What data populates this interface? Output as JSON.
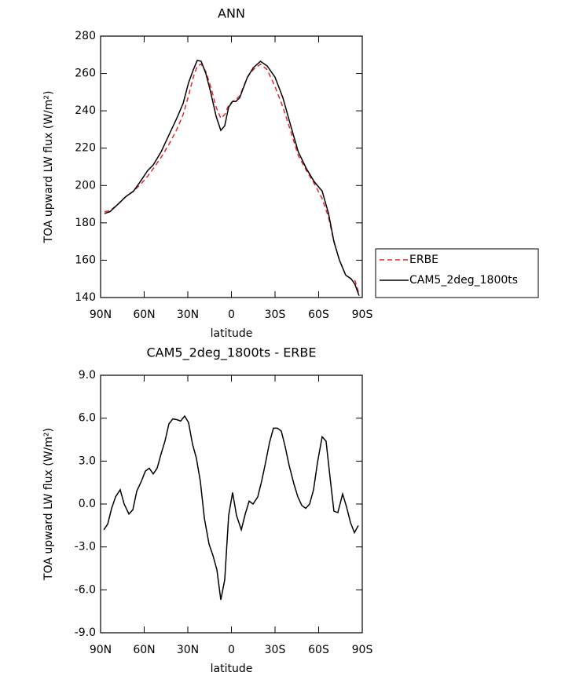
{
  "chart_data": [
    {
      "type": "line",
      "title": "ANN",
      "xlabel": "latitude",
      "ylabel": "TOA upward LW flux (W/m²)",
      "xlim": [
        90,
        -90
      ],
      "xticks": [
        {
          "value": 90,
          "label": "90N"
        },
        {
          "value": 60,
          "label": "60N"
        },
        {
          "value": 30,
          "label": "30N"
        },
        0,
        {
          "value": -30,
          "label": "30S"
        },
        {
          "value": -60,
          "label": "60S"
        },
        {
          "value": -90,
          "label": "90S"
        }
      ],
      "ylim": [
        140,
        280
      ],
      "yticks": [
        140,
        160,
        180,
        200,
        220,
        240,
        260,
        280
      ],
      "legend": "right",
      "series": [
        {
          "name": "ERBE",
          "color": "#e8262a",
          "style": "dashed",
          "x": [
            87.3,
            83.5,
            78,
            72.7,
            67.3,
            62,
            57.6,
            53.8,
            48.4,
            43,
            37.6,
            33.2,
            29.5,
            26.2,
            23.5,
            20.8,
            17.6,
            14.3,
            10.5,
            7.3,
            4.6,
            1.9,
            -0.8,
            -3,
            -5.7,
            -11,
            -15,
            -20,
            -24.6,
            -30,
            -35.4,
            -40.8,
            -46,
            -51.6,
            -57,
            -62.4,
            -66.8,
            -70.5,
            -74.3,
            -78.6,
            -82.4,
            -85,
            -87.8
          ],
          "values": [
            186,
            186.5,
            190,
            194,
            197,
            201,
            205,
            209,
            215,
            222,
            230,
            238,
            248,
            258,
            264,
            265,
            261,
            253,
            242,
            236,
            238,
            243,
            245,
            246,
            248,
            258,
            262,
            265,
            262,
            253,
            242,
            229,
            216,
            208,
            201,
            193,
            183,
            170,
            160,
            152,
            150,
            149,
            142
          ]
        },
        {
          "name": "CAM5_2deg_1800ts",
          "color": "#000000",
          "style": "solid",
          "x": [
            87.3,
            83.5,
            78,
            72.7,
            67.3,
            61.9,
            57.6,
            53.8,
            48.4,
            43,
            37.6,
            33.2,
            29.5,
            26.2,
            23.5,
            20.8,
            17.6,
            14.3,
            10.5,
            7.3,
            4.6,
            1.9,
            -0.8,
            -3,
            -5.7,
            -11,
            -15,
            -20,
            -24.6,
            -30,
            -35.4,
            -40.8,
            -46,
            -51.6,
            -57,
            -62.4,
            -66.8,
            -70.5,
            -74.3,
            -78.6,
            -82.4,
            -85,
            -87.8
          ],
          "values": [
            185,
            186,
            190,
            194,
            197,
            203,
            208,
            211,
            218,
            227,
            236,
            244,
            255,
            262,
            267,
            266.5,
            260,
            250,
            237,
            229.5,
            232,
            242,
            245,
            245,
            247,
            258,
            263,
            266.5,
            264,
            258,
            247,
            232,
            218,
            209,
            202,
            197,
            185,
            170,
            160,
            152,
            150,
            147,
            141
          ]
        }
      ]
    },
    {
      "type": "line",
      "title": "CAM5_2deg_1800ts - ERBE",
      "xlabel": "latitude",
      "ylabel": "TOA upward LW flux (W/m²)",
      "xlim": [
        90,
        -90
      ],
      "xticks": [
        {
          "value": 90,
          "label": "90N"
        },
        {
          "value": 60,
          "label": "60N"
        },
        {
          "value": 30,
          "label": "30N"
        },
        0,
        {
          "value": -30,
          "label": "30S"
        },
        {
          "value": -60,
          "label": "60S"
        },
        {
          "value": -90,
          "label": "90S"
        }
      ],
      "ylim": [
        -9,
        9
      ],
      "yticks": [
        {
          "value": -9,
          "label": "-9.0"
        },
        {
          "value": -6,
          "label": "-6.0"
        },
        {
          "value": -3,
          "label": "-3.0"
        },
        {
          "value": 0,
          "label": "0.0"
        },
        {
          "value": 3,
          "label": "3.0"
        },
        {
          "value": 6,
          "label": "6.0"
        },
        {
          "value": 9,
          "label": "9.0"
        }
      ],
      "series": [
        {
          "color": "#000000",
          "style": "solid",
          "x": [
            87.8,
            85.1,
            82.4,
            79.7,
            76.5,
            73.8,
            70.5,
            67.8,
            65.1,
            61.9,
            59.2,
            56.5,
            53.8,
            51.1,
            48.4,
            45.7,
            43,
            40.3,
            37.6,
            34.9,
            32.2,
            29.5,
            26.8,
            24.1,
            21.4,
            18.6,
            15.4,
            12.7,
            10,
            7.3,
            4.6,
            1.9,
            -0.8,
            -3.5,
            -6.8,
            -9.5,
            -12.2,
            -14.9,
            -18.1,
            -20.8,
            -23.5,
            -26.2,
            -28.9,
            -31.6,
            -34.3,
            -37,
            -39.7,
            -43,
            -45.7,
            -48.4,
            -51.1,
            -53.8,
            -56.5,
            -59.2,
            -62.4,
            -65.1,
            -67.8,
            -70.5,
            -73.2,
            -76.5,
            -79.2,
            -81.9,
            -84.6,
            -87.3
          ],
          "values": [
            -1.8,
            -1.4,
            -0.3,
            0.5,
            1.0,
            0,
            -0.7,
            -0.4,
            0.9,
            1.6,
            2.3,
            2.5,
            2.1,
            2.5,
            3.5,
            4.4,
            5.6,
            5.95,
            5.9,
            5.8,
            6.15,
            5.7,
            4.2,
            3.2,
            1.6,
            -1.0,
            -2.8,
            -3.6,
            -4.6,
            -6.7,
            -5.3,
            -0.8,
            0.8,
            -0.8,
            -1.8,
            -0.7,
            0.2,
            0,
            0.5,
            1.6,
            2.9,
            4.3,
            5.3,
            5.3,
            5.1,
            4.0,
            2.7,
            1.4,
            0.5,
            -0.1,
            -0.3,
            0,
            1.0,
            2.9,
            4.7,
            4.4,
            1.9,
            -0.5,
            -0.6,
            0.7,
            -0.2,
            -1.3,
            -2.0,
            -1.5
          ]
        }
      ]
    }
  ]
}
